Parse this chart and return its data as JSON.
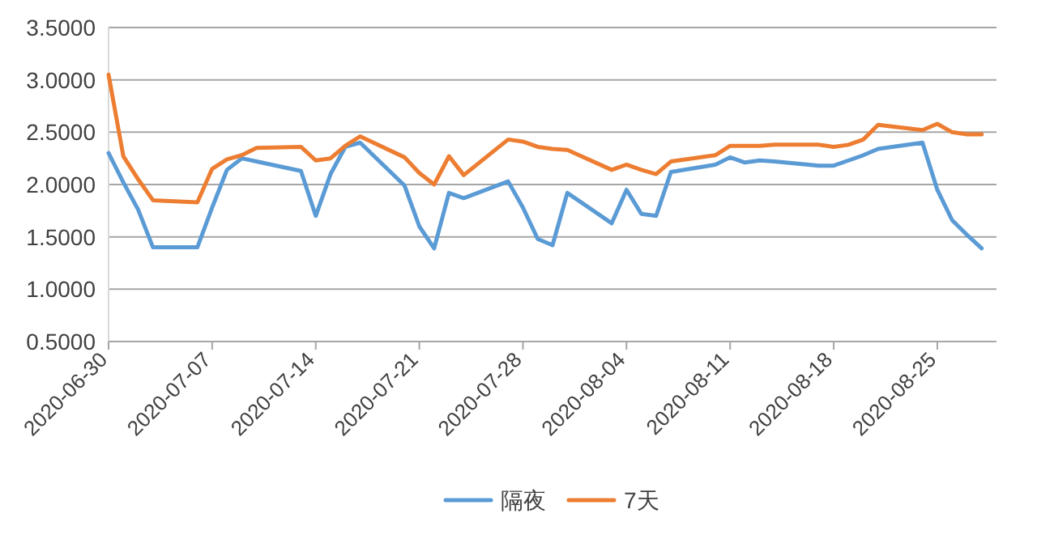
{
  "chart_data": {
    "type": "line",
    "x": [
      "2020-06-30",
      "2020-07-01",
      "2020-07-02",
      "2020-07-03",
      "2020-07-06",
      "2020-07-07",
      "2020-07-08",
      "2020-07-09",
      "2020-07-10",
      "2020-07-13",
      "2020-07-14",
      "2020-07-15",
      "2020-07-16",
      "2020-07-17",
      "2020-07-20",
      "2020-07-21",
      "2020-07-22",
      "2020-07-23",
      "2020-07-24",
      "2020-07-27",
      "2020-07-28",
      "2020-07-29",
      "2020-07-30",
      "2020-07-31",
      "2020-08-03",
      "2020-08-04",
      "2020-08-05",
      "2020-08-06",
      "2020-08-07",
      "2020-08-10",
      "2020-08-11",
      "2020-08-12",
      "2020-08-13",
      "2020-08-14",
      "2020-08-17",
      "2020-08-18",
      "2020-08-19",
      "2020-08-20",
      "2020-08-21",
      "2020-08-24",
      "2020-08-25",
      "2020-08-26",
      "2020-08-27",
      "2020-08-28"
    ],
    "series": [
      {
        "name": "隔夜",
        "color": "#5b9bd5",
        "values": [
          2.3,
          2.02,
          1.76,
          1.4,
          1.4,
          1.78,
          2.14,
          2.25,
          2.22,
          2.13,
          1.7,
          2.1,
          2.36,
          2.4,
          1.99,
          1.6,
          1.39,
          1.92,
          1.87,
          2.03,
          1.78,
          1.48,
          1.42,
          1.92,
          1.63,
          1.95,
          1.72,
          1.7,
          2.12,
          2.19,
          2.26,
          2.21,
          2.23,
          2.22,
          2.18,
          2.18,
          2.23,
          2.28,
          2.34,
          2.4,
          1.95,
          1.66,
          1.52,
          1.39
        ]
      },
      {
        "name": "7天",
        "color": "#ed7d31",
        "values": [
          3.05,
          2.27,
          2.05,
          1.85,
          1.83,
          2.15,
          2.24,
          2.28,
          2.35,
          2.36,
          2.23,
          2.25,
          2.37,
          2.46,
          2.26,
          2.11,
          2.0,
          2.27,
          2.09,
          2.43,
          2.41,
          2.36,
          2.34,
          2.33,
          2.14,
          2.19,
          2.14,
          2.1,
          2.22,
          2.28,
          2.37,
          2.37,
          2.37,
          2.38,
          2.38,
          2.36,
          2.38,
          2.43,
          2.57,
          2.52,
          2.58,
          2.5,
          2.48,
          2.48
        ]
      }
    ],
    "xlim": [
      "2020-06-30",
      "2020-08-29"
    ],
    "xticks": [
      "2020-06-30",
      "2020-07-07",
      "2020-07-14",
      "2020-07-21",
      "2020-07-28",
      "2020-08-04",
      "2020-08-11",
      "2020-08-18",
      "2020-08-25"
    ],
    "ylim": [
      0.5,
      3.5
    ],
    "yticks": [
      {
        "value": 0.5,
        "label": "0.5000"
      },
      {
        "value": 1.0,
        "label": "1.0000"
      },
      {
        "value": 1.5,
        "label": "1.5000"
      },
      {
        "value": 2.0,
        "label": "2.0000"
      },
      {
        "value": 2.5,
        "label": "2.5000"
      },
      {
        "value": 3.0,
        "label": "3.0000"
      },
      {
        "value": 3.5,
        "label": "3.5000"
      }
    ],
    "grid": "y",
    "legend": "bottom"
  }
}
